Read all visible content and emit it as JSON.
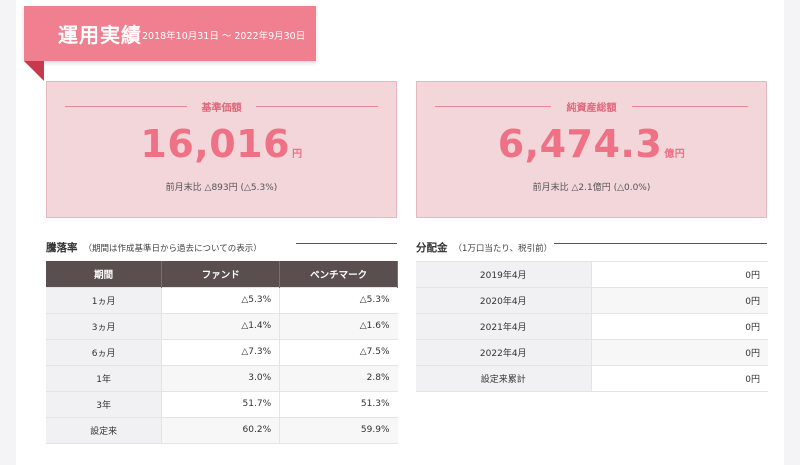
{
  "header": {
    "title": "運用実績",
    "period": "2018年10月31日 ～ 2022年9月30日"
  },
  "nav_card": {
    "label": "基準価額",
    "value": "16,016",
    "unit": "円",
    "change": "前月末比 △893円 (△5.3%)"
  },
  "assets_card": {
    "label": "純資産総額",
    "value": "6,474.3",
    "unit": "億円",
    "change": "前月末比 △2.1億円 (△0.0%)"
  },
  "performance": {
    "title": "騰落率",
    "note": "（期間は作成基準日から過去についての表示）",
    "headers": [
      "期間",
      "ファンド",
      "ベンチマーク"
    ],
    "rows": [
      {
        "period": "1ヵ月",
        "fund": "△5.3%",
        "benchmark": "△5.3%"
      },
      {
        "period": "3ヵ月",
        "fund": "△1.4%",
        "benchmark": "△1.6%"
      },
      {
        "period": "6ヵ月",
        "fund": "△7.3%",
        "benchmark": "△7.5%"
      },
      {
        "period": "1年",
        "fund": "3.0%",
        "benchmark": "2.8%"
      },
      {
        "period": "3年",
        "fund": "51.7%",
        "benchmark": "51.3%"
      },
      {
        "period": "設定来",
        "fund": "60.2%",
        "benchmark": "59.9%"
      }
    ]
  },
  "dividends": {
    "title": "分配金",
    "note": "（1万口当たり、税引前）",
    "rows": [
      {
        "period": "2019年4月",
        "amount": "0円"
      },
      {
        "period": "2020年4月",
        "amount": "0円"
      },
      {
        "period": "2021年4月",
        "amount": "0円"
      },
      {
        "period": "2022年4月",
        "amount": "0円"
      },
      {
        "period": "設定来累計",
        "amount": "0円"
      }
    ]
  },
  "colors": {
    "accent": "#f07f90",
    "accent_dark": "#c9394e",
    "card_bg": "#f2d6d9",
    "value_text": "#ee7185",
    "table_header": "#5a4e4f"
  }
}
